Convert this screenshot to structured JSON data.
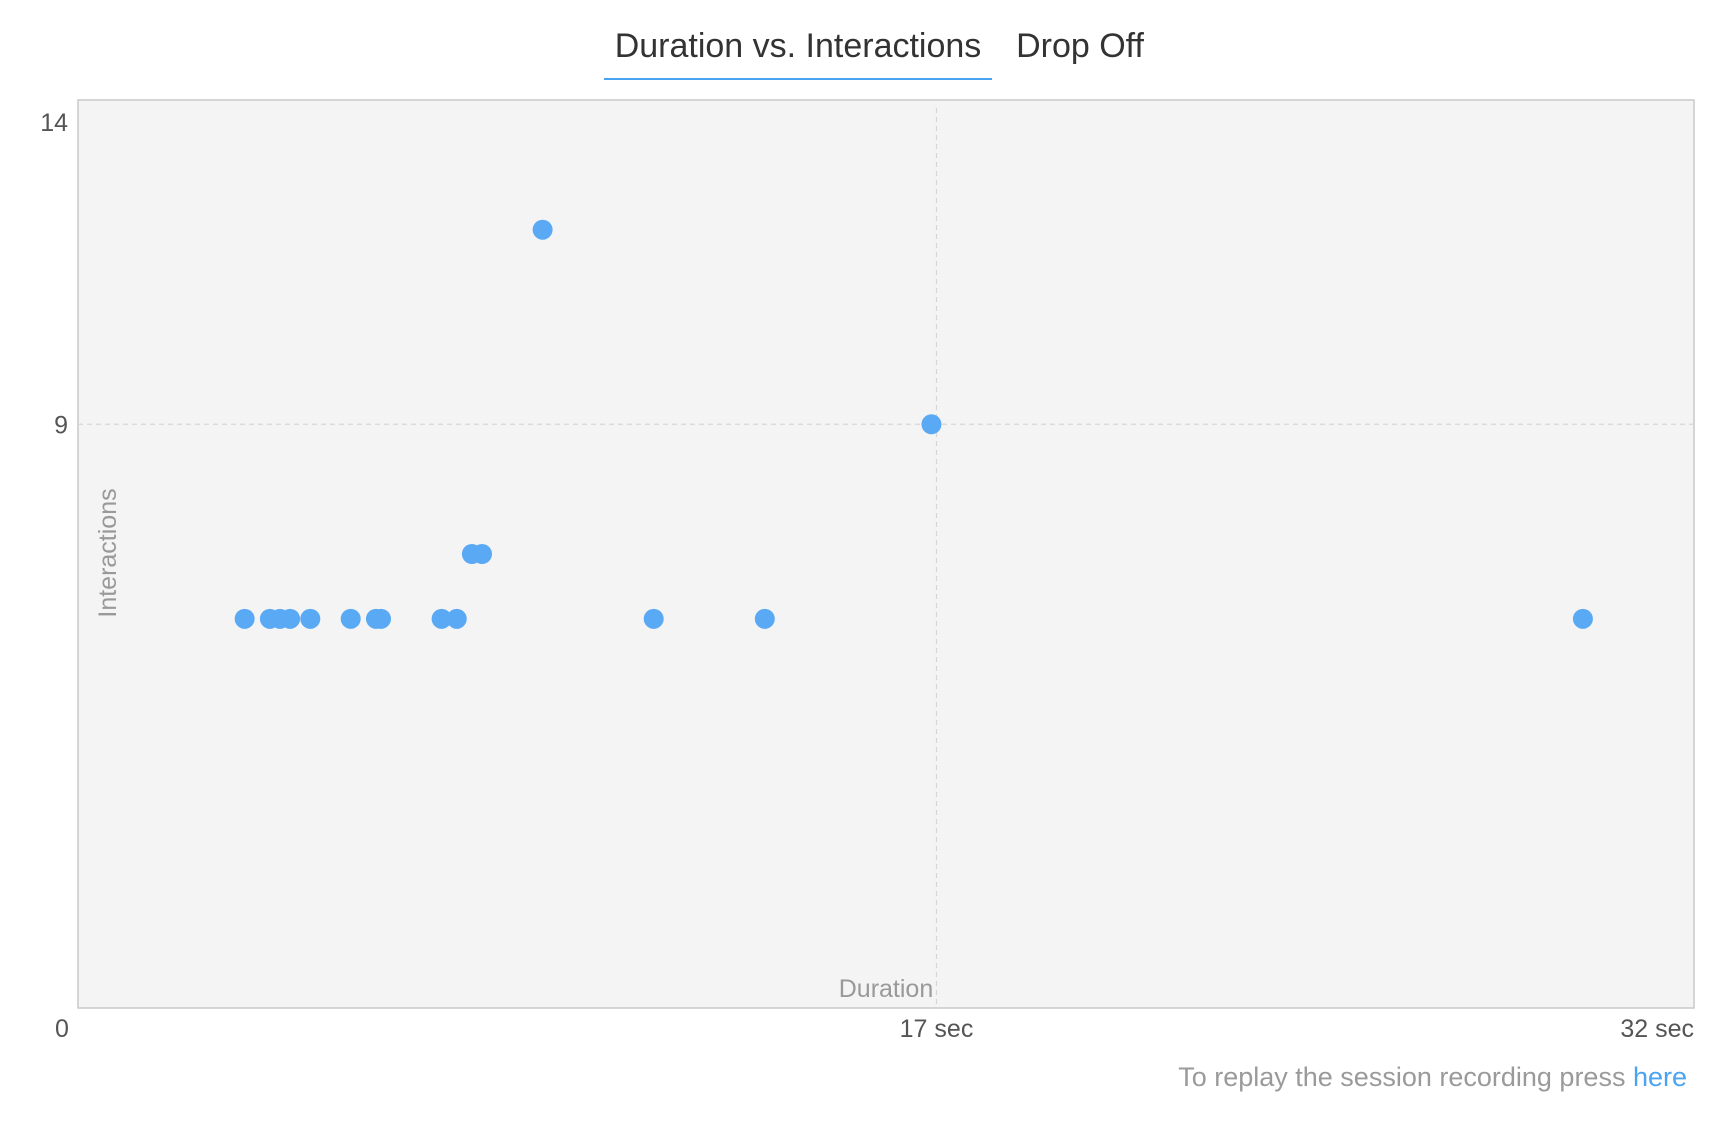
{
  "tabs": [
    {
      "label": "Duration vs. Interactions",
      "active": true
    },
    {
      "label": "Drop Off",
      "active": false
    }
  ],
  "chart_data": {
    "type": "scatter",
    "xlabel": "Duration",
    "ylabel": "Interactions",
    "xlim": [
      0,
      32
    ],
    "ylim": [
      0,
      14
    ],
    "x_ticks": [
      {
        "value": 0,
        "label": "0"
      },
      {
        "value": 17,
        "label": "17 sec"
      },
      {
        "value": 32,
        "label": "32 sec"
      }
    ],
    "y_ticks": [
      {
        "value": 9,
        "label": "9"
      },
      {
        "value": 14,
        "label": "14"
      }
    ],
    "grid": {
      "x": [
        17
      ],
      "y": [
        9
      ]
    },
    "point_color": "#5aa9f5",
    "series": [
      {
        "points": [
          {
            "x": 3.3,
            "y": 6
          },
          {
            "x": 3.8,
            "y": 6
          },
          {
            "x": 4.0,
            "y": 6
          },
          {
            "x": 4.2,
            "y": 6
          },
          {
            "x": 4.6,
            "y": 6
          },
          {
            "x": 5.4,
            "y": 6
          },
          {
            "x": 5.9,
            "y": 6
          },
          {
            "x": 6.0,
            "y": 6
          },
          {
            "x": 7.2,
            "y": 6
          },
          {
            "x": 7.5,
            "y": 6
          },
          {
            "x": 7.8,
            "y": 7
          },
          {
            "x": 8.0,
            "y": 7
          },
          {
            "x": 9.2,
            "y": 12
          },
          {
            "x": 11.4,
            "y": 6
          },
          {
            "x": 13.6,
            "y": 6
          },
          {
            "x": 16.9,
            "y": 9
          },
          {
            "x": 29.8,
            "y": 6
          }
        ]
      }
    ]
  },
  "footer": {
    "text": "To replay the session recording press ",
    "link": "here"
  }
}
